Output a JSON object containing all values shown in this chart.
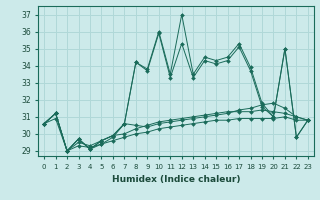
{
  "xlabel": "Humidex (Indice chaleur)",
  "xlim": [
    -0.5,
    23.5
  ],
  "ylim": [
    28.7,
    37.5
  ],
  "yticks": [
    29,
    30,
    31,
    32,
    33,
    34,
    35,
    36,
    37
  ],
  "xticks": [
    0,
    1,
    2,
    3,
    4,
    5,
    6,
    7,
    8,
    9,
    10,
    11,
    12,
    13,
    14,
    15,
    16,
    17,
    18,
    19,
    20,
    21,
    22,
    23
  ],
  "bg_color": "#cceaea",
  "line_color": "#1a6b5a",
  "grid_color": "#b0d8d8",
  "line1": [
    30.6,
    30.9,
    29.0,
    29.3,
    29.2,
    29.4,
    29.6,
    29.8,
    30.0,
    30.1,
    30.3,
    30.4,
    30.5,
    30.6,
    30.7,
    30.8,
    30.8,
    30.9,
    30.9,
    30.9,
    30.9,
    31.0,
    30.8,
    30.8
  ],
  "line2": [
    30.6,
    31.2,
    29.0,
    29.5,
    29.3,
    29.6,
    29.9,
    30.0,
    30.3,
    30.5,
    30.7,
    30.8,
    30.9,
    31.0,
    31.1,
    31.2,
    31.3,
    31.3,
    31.3,
    31.4,
    31.3,
    31.2,
    31.0,
    30.8
  ],
  "line3": [
    30.6,
    31.2,
    29.0,
    29.7,
    29.1,
    29.6,
    29.9,
    30.6,
    30.5,
    30.4,
    30.6,
    30.7,
    30.8,
    30.9,
    31.0,
    31.1,
    31.2,
    31.4,
    31.5,
    31.7,
    31.8,
    31.5,
    31.0,
    30.8
  ],
  "line4": [
    30.6,
    31.2,
    29.0,
    29.7,
    29.1,
    29.4,
    29.8,
    30.6,
    34.2,
    33.7,
    35.9,
    33.3,
    35.3,
    33.3,
    34.3,
    34.1,
    34.3,
    35.1,
    33.7,
    31.6,
    31.0,
    35.0,
    29.8,
    30.8
  ],
  "line5": [
    30.6,
    31.2,
    29.0,
    29.7,
    29.1,
    29.6,
    29.9,
    30.6,
    34.2,
    33.8,
    36.0,
    33.5,
    37.0,
    33.5,
    34.5,
    34.3,
    34.5,
    35.3,
    33.9,
    31.8,
    31.0,
    35.0,
    29.8,
    30.8
  ]
}
